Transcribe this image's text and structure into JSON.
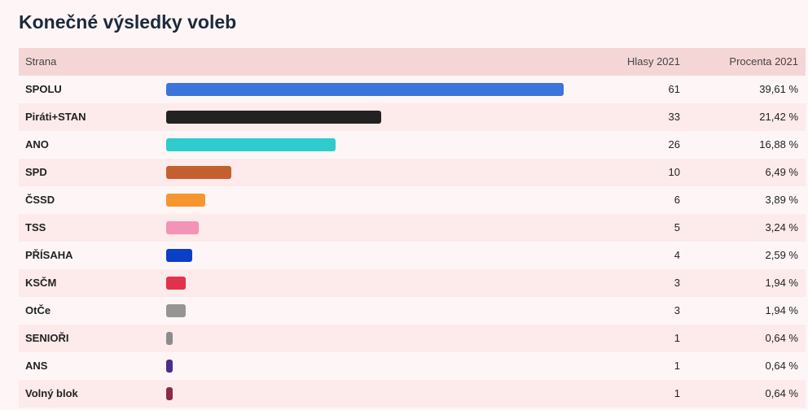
{
  "header": {
    "title": "Konečné výsledky voleb"
  },
  "table": {
    "columns": [
      "Strana",
      "Hlasy 2021",
      "Procenta 2021"
    ],
    "rows": [
      {
        "party": "SPOLU",
        "color": "#3d74dc",
        "votes": 61,
        "percent": "39,61 %"
      },
      {
        "party": "Piráti+STAN",
        "color": "#222222",
        "votes": 33,
        "percent": "21,42 %"
      },
      {
        "party": "ANO",
        "color": "#2ecccc",
        "votes": 26,
        "percent": "16,88 %"
      },
      {
        "party": "SPD",
        "color": "#c4602f",
        "votes": 10,
        "percent": "6,49 %"
      },
      {
        "party": "ČSSD",
        "color": "#f79530",
        "votes": 6,
        "percent": "3,89 %"
      },
      {
        "party": "TSS",
        "color": "#f393b5",
        "votes": 5,
        "percent": "3,24 %"
      },
      {
        "party": "PŘÍSAHA",
        "color": "#0a3fc6",
        "votes": 4,
        "percent": "2,59 %"
      },
      {
        "party": "KSČM",
        "color": "#e0324a",
        "votes": 3,
        "percent": "1,94 %"
      },
      {
        "party": "OtČe",
        "color": "#959595",
        "votes": 3,
        "percent": "1,94 %"
      },
      {
        "party": "SENIOŘI",
        "color": "#8c8c8c",
        "votes": 1,
        "percent": "0,64 %"
      },
      {
        "party": "ANS",
        "color": "#4c2c8c",
        "votes": 1,
        "percent": "0,64 %"
      },
      {
        "party": "Volný blok",
        "color": "#8c2a4a",
        "votes": 1,
        "percent": "0,64 %"
      }
    ]
  }
}
